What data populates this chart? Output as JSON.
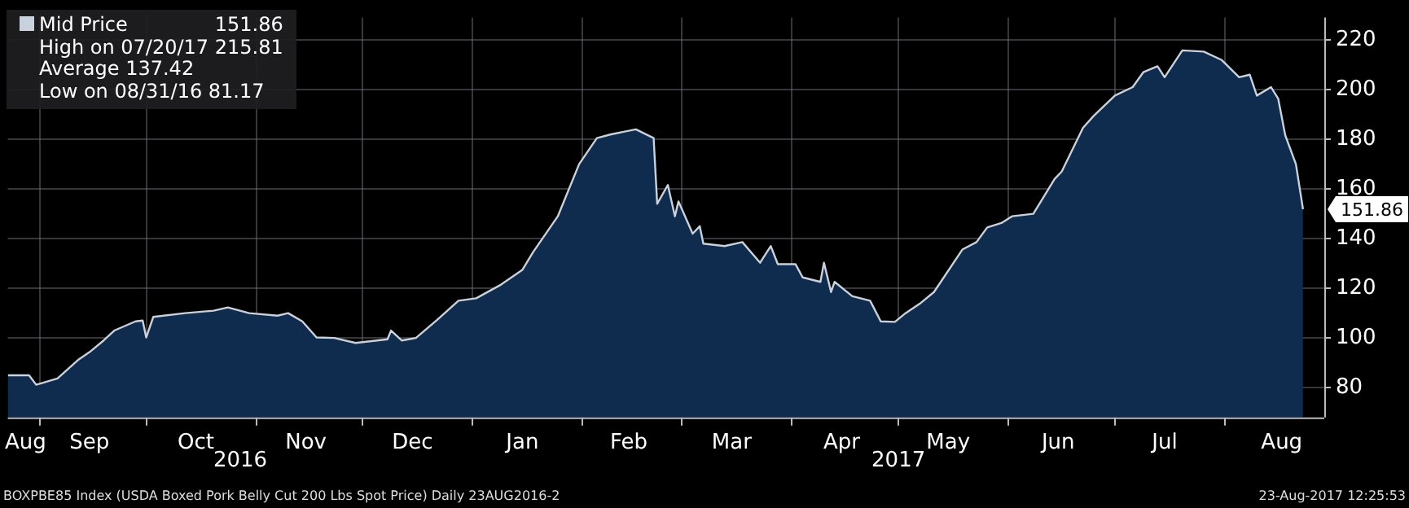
{
  "chart_data": {
    "type": "area",
    "x": [
      "2016-08-23",
      "2016-08-29",
      "2016-08-31",
      "2016-09-06",
      "2016-09-12",
      "2016-09-15",
      "2016-09-19",
      "2016-09-22",
      "2016-09-28",
      "2016-09-30",
      "2016-10-01",
      "2016-10-03",
      "2016-10-12",
      "2016-10-20",
      "2016-10-24",
      "2016-10-30",
      "2016-11-07",
      "2016-11-10",
      "2016-11-14",
      "2016-11-18",
      "2016-11-23",
      "2016-11-29",
      "2016-12-08",
      "2016-12-09",
      "2016-12-12",
      "2016-12-16",
      "2016-12-22",
      "2016-12-28",
      "2017-01-02",
      "2017-01-09",
      "2017-01-15",
      "2017-01-18",
      "2017-01-25",
      "2017-01-31",
      "2017-02-05",
      "2017-02-09",
      "2017-02-16",
      "2017-02-21",
      "2017-02-22",
      "2017-02-25",
      "2017-02-27",
      "2017-02-28",
      "2017-03-04",
      "2017-03-06",
      "2017-03-07",
      "2017-03-13",
      "2017-03-18",
      "2017-03-23",
      "2017-03-26",
      "2017-03-28",
      "2017-04-02",
      "2017-04-04",
      "2017-04-09",
      "2017-04-10",
      "2017-04-12",
      "2017-04-13",
      "2017-04-18",
      "2017-04-23",
      "2017-04-26",
      "2017-04-30",
      "2017-05-03",
      "2017-05-07",
      "2017-05-11",
      "2017-05-19",
      "2017-05-23",
      "2017-05-26",
      "2017-05-30",
      "2017-06-02",
      "2017-06-08",
      "2017-06-14",
      "2017-06-16",
      "2017-06-22",
      "2017-06-25",
      "2017-07-01",
      "2017-07-06",
      "2017-07-09",
      "2017-07-13",
      "2017-07-15",
      "2017-07-20",
      "2017-07-26",
      "2017-07-31",
      "2017-08-05",
      "2017-08-08",
      "2017-08-10",
      "2017-08-14",
      "2017-08-16",
      "2017-08-18",
      "2017-08-21",
      "2017-08-23"
    ],
    "series": [
      {
        "name": "Mid Price",
        "color": "#c9d1dd",
        "values": [
          85,
          85,
          81.17,
          83.7,
          91.4,
          94.3,
          99,
          103,
          106.7,
          107,
          100.2,
          108.5,
          110,
          111,
          112.3,
          110,
          109,
          110,
          106.7,
          100.2,
          100,
          98,
          99.5,
          103,
          99,
          100,
          107.3,
          115,
          116,
          121.5,
          127.4,
          134.5,
          149,
          170,
          180.5,
          182,
          184,
          180.5,
          154,
          161.6,
          149,
          155,
          142,
          145,
          138,
          137,
          138.6,
          130.3,
          137,
          129.7,
          129.7,
          124.4,
          122.6,
          130.3,
          118.5,
          122.6,
          116.8,
          115,
          106.7,
          106.5,
          110,
          113.8,
          118.5,
          135.6,
          138.6,
          144.5,
          146.3,
          149,
          150,
          164,
          167,
          184.6,
          189.4,
          197.6,
          201,
          207,
          209.4,
          205,
          215.81,
          215.3,
          212,
          205,
          206,
          197.6,
          201,
          196.4,
          181.6,
          170,
          151.86
        ]
      }
    ],
    "ylim": [
      68,
      229
    ],
    "yticks": [
      80,
      100,
      120,
      140,
      160,
      180,
      200,
      220
    ],
    "xlim": [
      "2016-08-23",
      "2017-08-29"
    ],
    "xticks": [
      {
        "value": "2016-08-28",
        "label": "Aug"
      },
      {
        "value": "2016-09-01",
        "label": null
      },
      {
        "value": "2016-09-15",
        "label": "Sep"
      },
      {
        "value": "2016-10-01",
        "label": null
      },
      {
        "value": "2016-10-15",
        "label": "Oct"
      },
      {
        "value": "2016-11-01",
        "label": null
      },
      {
        "value": "2016-11-15",
        "label": "Nov"
      },
      {
        "value": "2016-12-01",
        "label": null
      },
      {
        "value": "2016-12-15",
        "label": "Dec"
      },
      {
        "value": "2017-01-01",
        "label": null
      },
      {
        "value": "2017-01-15",
        "label": "Jan"
      },
      {
        "value": "2017-02-01",
        "label": null
      },
      {
        "value": "2017-02-14",
        "label": "Feb"
      },
      {
        "value": "2017-03-01",
        "label": null
      },
      {
        "value": "2017-03-15",
        "label": "Mar"
      },
      {
        "value": "2017-04-01",
        "label": null
      },
      {
        "value": "2017-04-15",
        "label": "Apr"
      },
      {
        "value": "2017-05-01",
        "label": null
      },
      {
        "value": "2017-05-15",
        "label": "May"
      },
      {
        "value": "2017-06-01",
        "label": null
      },
      {
        "value": "2017-06-15",
        "label": "Jun"
      },
      {
        "value": "2017-07-01",
        "label": null
      },
      {
        "value": "2017-07-15",
        "label": "Jul"
      },
      {
        "value": "2017-08-01",
        "label": null
      },
      {
        "value": "2017-08-17",
        "label": "Aug"
      }
    ],
    "grid": true,
    "legend": "top left",
    "annotations": [
      {
        "text": "151.86",
        "x": "2017-08-23",
        "y": 151.86
      },
      "High on 07/20/17 215.81",
      "Average 137.42",
      "Low on 08/31/16 81.17",
      "BOXPBE85 Index (USDA Boxed Pork Belly Cut 200 Lbs Spot Price)  Daily 23AUG2016-2",
      "23-Aug-2017 12:25:53",
      "2016",
      "2017"
    ]
  }
}
